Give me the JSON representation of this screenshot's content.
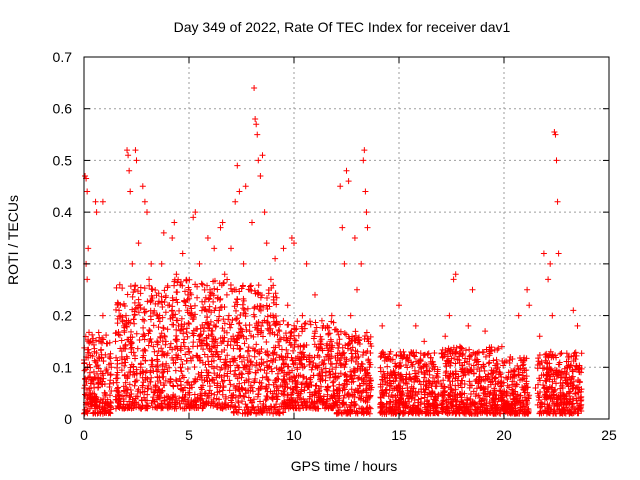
{
  "chart_data": {
    "type": "scatter",
    "title": "Day 349 of 2022, Rate Of TEC Index for receiver dav1",
    "xlabel": "GPS time / hours",
    "ylabel": "ROTI / TECUs",
    "xlim": [
      0,
      25
    ],
    "ylim": [
      0,
      0.7
    ],
    "xticks": [
      0,
      5,
      10,
      15,
      20,
      25
    ],
    "yticks": [
      0,
      0.1,
      0.2,
      0.3,
      0.4,
      0.5,
      0.6,
      0.7
    ],
    "xtick_labels": [
      "0",
      "5",
      "10",
      "15",
      "20",
      "25"
    ],
    "ytick_labels": [
      "0",
      "0.1",
      "0.2",
      "0.3",
      "0.4",
      "0.5",
      "0.6",
      "0.7"
    ],
    "grid": true,
    "marker": "plus",
    "color": "#ff0000",
    "series": [
      {
        "points": [
          [
            0.05,
            0.47
          ],
          [
            0.1,
            0.465
          ],
          [
            0.15,
            0.44
          ],
          [
            0.1,
            0.3
          ],
          [
            0.15,
            0.27
          ],
          [
            0.2,
            0.33
          ],
          [
            0.1,
            0.12
          ],
          [
            0.2,
            0.08
          ],
          [
            0.3,
            0.15
          ],
          [
            0.25,
            0.05
          ],
          [
            0.5,
            0.13
          ],
          [
            0.55,
            0.42
          ],
          [
            0.6,
            0.4
          ],
          [
            0.7,
            0.08
          ],
          [
            0.8,
            0.15
          ],
          [
            0.9,
            0.2
          ],
          [
            0.9,
            0.42
          ],
          [
            1.0,
            0.05
          ],
          [
            1.2,
            0.12
          ],
          [
            1.3,
            0.1
          ],
          [
            1.4,
            0.07
          ],
          [
            1.5,
            0.15
          ],
          [
            1.6,
            0.09
          ],
          [
            1.7,
            0.04
          ],
          [
            1.8,
            0.12
          ],
          [
            1.9,
            0.18
          ],
          [
            2.0,
            0.2
          ],
          [
            2.0,
            0.06
          ],
          [
            2.05,
            0.52
          ],
          [
            2.1,
            0.51
          ],
          [
            2.15,
            0.48
          ],
          [
            2.2,
            0.44
          ],
          [
            2.3,
            0.3
          ],
          [
            2.4,
            0.25
          ],
          [
            2.45,
            0.52
          ],
          [
            2.5,
            0.5
          ],
          [
            2.6,
            0.34
          ],
          [
            2.7,
            0.1
          ],
          [
            2.8,
            0.45
          ],
          [
            2.9,
            0.42
          ],
          [
            3.0,
            0.4
          ],
          [
            3.1,
            0.27
          ],
          [
            3.2,
            0.3
          ],
          [
            3.3,
            0.14
          ],
          [
            3.5,
            0.2
          ],
          [
            3.6,
            0.08
          ],
          [
            3.7,
            0.3
          ],
          [
            3.8,
            0.36
          ],
          [
            3.9,
            0.15
          ],
          [
            4.0,
            0.22
          ],
          [
            4.1,
            0.04
          ],
          [
            4.2,
            0.35
          ],
          [
            4.3,
            0.38
          ],
          [
            4.4,
            0.28
          ],
          [
            4.5,
            0.18
          ],
          [
            4.6,
            0.1
          ],
          [
            4.7,
            0.32
          ],
          [
            4.8,
            0.14
          ],
          [
            4.9,
            0.07
          ],
          [
            5.0,
            0.25
          ],
          [
            5.1,
            0.2
          ],
          [
            5.2,
            0.39
          ],
          [
            5.3,
            0.4
          ],
          [
            5.4,
            0.12
          ],
          [
            5.5,
            0.3
          ],
          [
            5.6,
            0.09
          ],
          [
            5.7,
            0.17
          ],
          [
            5.8,
            0.05
          ],
          [
            5.9,
            0.35
          ],
          [
            6.0,
            0.25
          ],
          [
            6.1,
            0.15
          ],
          [
            6.2,
            0.33
          ],
          [
            6.3,
            0.08
          ],
          [
            6.4,
            0.12
          ],
          [
            6.5,
            0.37
          ],
          [
            6.6,
            0.38
          ],
          [
            6.7,
            0.28
          ],
          [
            6.8,
            0.11
          ],
          [
            6.9,
            0.2
          ],
          [
            7.0,
            0.33
          ],
          [
            7.1,
            0.16
          ],
          [
            7.2,
            0.42
          ],
          [
            7.3,
            0.49
          ],
          [
            7.4,
            0.44
          ],
          [
            7.5,
            0.08
          ],
          [
            7.6,
            0.3
          ],
          [
            7.7,
            0.45
          ],
          [
            7.8,
            0.13
          ],
          [
            7.9,
            0.25
          ],
          [
            8.0,
            0.38
          ],
          [
            8.1,
            0.64
          ],
          [
            8.15,
            0.58
          ],
          [
            8.2,
            0.57
          ],
          [
            8.25,
            0.55
          ],
          [
            8.3,
            0.5
          ],
          [
            8.4,
            0.47
          ],
          [
            8.5,
            0.51
          ],
          [
            8.6,
            0.4
          ],
          [
            8.7,
            0.34
          ],
          [
            8.8,
            0.1
          ],
          [
            8.9,
            0.27
          ],
          [
            9.0,
            0.2
          ],
          [
            9.1,
            0.31
          ],
          [
            9.2,
            0.06
          ],
          [
            9.3,
            0.17
          ],
          [
            9.5,
            0.33
          ],
          [
            9.6,
            0.12
          ],
          [
            9.7,
            0.22
          ],
          [
            9.8,
            0.09
          ],
          [
            9.9,
            0.35
          ],
          [
            10.0,
            0.34
          ],
          [
            10.2,
            0.14
          ],
          [
            10.4,
            0.2
          ],
          [
            10.6,
            0.3
          ],
          [
            10.8,
            0.08
          ],
          [
            11.0,
            0.24
          ],
          [
            11.2,
            0.12
          ],
          [
            11.4,
            0.18
          ],
          [
            11.6,
            0.06
          ],
          [
            11.8,
            0.2
          ],
          [
            12.0,
            0.1
          ],
          [
            12.2,
            0.45
          ],
          [
            12.3,
            0.37
          ],
          [
            12.4,
            0.3
          ],
          [
            12.5,
            0.48
          ],
          [
            12.6,
            0.46
          ],
          [
            12.7,
            0.2
          ],
          [
            12.8,
            0.12
          ],
          [
            12.9,
            0.35
          ],
          [
            13.0,
            0.25
          ],
          [
            13.1,
            0.08
          ],
          [
            13.2,
            0.3
          ],
          [
            13.3,
            0.5
          ],
          [
            13.35,
            0.52
          ],
          [
            13.4,
            0.44
          ],
          [
            13.45,
            0.4
          ],
          [
            13.5,
            0.37
          ],
          [
            13.55,
            0.15
          ],
          [
            13.6,
            0.06
          ],
          [
            13.65,
            0.02
          ],
          [
            14.2,
            0.18
          ],
          [
            14.3,
            0.08
          ],
          [
            14.4,
            0.05
          ],
          [
            14.6,
            0.13
          ],
          [
            14.8,
            0.09
          ],
          [
            15.0,
            0.22
          ],
          [
            15.2,
            0.12
          ],
          [
            15.4,
            0.06
          ],
          [
            15.6,
            0.04
          ],
          [
            15.8,
            0.18
          ],
          [
            16.0,
            0.1
          ],
          [
            16.2,
            0.15
          ],
          [
            16.4,
            0.03
          ],
          [
            16.6,
            0.11
          ],
          [
            16.8,
            0.07
          ],
          [
            17.0,
            0.05
          ],
          [
            17.2,
            0.16
          ],
          [
            17.4,
            0.2
          ],
          [
            17.6,
            0.27
          ],
          [
            17.7,
            0.28
          ],
          [
            17.9,
            0.14
          ],
          [
            18.1,
            0.09
          ],
          [
            18.3,
            0.18
          ],
          [
            18.5,
            0.25
          ],
          [
            18.7,
            0.11
          ],
          [
            18.9,
            0.06
          ],
          [
            19.1,
            0.17
          ],
          [
            19.3,
            0.13
          ],
          [
            19.5,
            0.04
          ],
          [
            19.7,
            0.1
          ],
          [
            19.9,
            0.14
          ],
          [
            20.1,
            0.08
          ],
          [
            20.3,
            0.12
          ],
          [
            20.5,
            0.03
          ],
          [
            20.7,
            0.2
          ],
          [
            20.9,
            0.11
          ],
          [
            21.0,
            0.06
          ],
          [
            21.1,
            0.25
          ],
          [
            21.2,
            0.22
          ],
          [
            21.5,
            0.06
          ],
          [
            21.7,
            0.16
          ],
          [
            21.9,
            0.32
          ],
          [
            22.0,
            0.12
          ],
          [
            22.1,
            0.27
          ],
          [
            22.2,
            0.3
          ],
          [
            22.3,
            0.2
          ],
          [
            22.4,
            0.555
          ],
          [
            22.45,
            0.55
          ],
          [
            22.5,
            0.5
          ],
          [
            22.55,
            0.42
          ],
          [
            22.6,
            0.32
          ],
          [
            22.7,
            0.08
          ],
          [
            22.9,
            0.04
          ],
          [
            23.1,
            0.12
          ],
          [
            23.3,
            0.21
          ],
          [
            23.4,
            0.05
          ],
          [
            23.5,
            0.18
          ],
          [
            23.6,
            0.1
          ]
        ]
      }
    ],
    "bands": [
      {
        "x": [
          0.0,
          1.3
        ],
        "low": 0.01,
        "high": 0.17
      },
      {
        "x": [
          1.5,
          4.0
        ],
        "low": 0.02,
        "high": 0.26
      },
      {
        "x": [
          4.0,
          7.0
        ],
        "low": 0.02,
        "high": 0.27
      },
      {
        "x": [
          7.0,
          9.5
        ],
        "low": 0.01,
        "high": 0.26
      },
      {
        "x": [
          9.5,
          12.0
        ],
        "low": 0.02,
        "high": 0.19
      },
      {
        "x": [
          12.0,
          13.7
        ],
        "low": 0.01,
        "high": 0.17
      },
      {
        "x": [
          14.1,
          16.9
        ],
        "low": 0.01,
        "high": 0.13
      },
      {
        "x": [
          17.0,
          19.8
        ],
        "low": 0.01,
        "high": 0.14
      },
      {
        "x": [
          19.8,
          21.2
        ],
        "low": 0.01,
        "high": 0.12
      },
      {
        "x": [
          21.6,
          23.7
        ],
        "low": 0.01,
        "high": 0.13
      }
    ]
  }
}
